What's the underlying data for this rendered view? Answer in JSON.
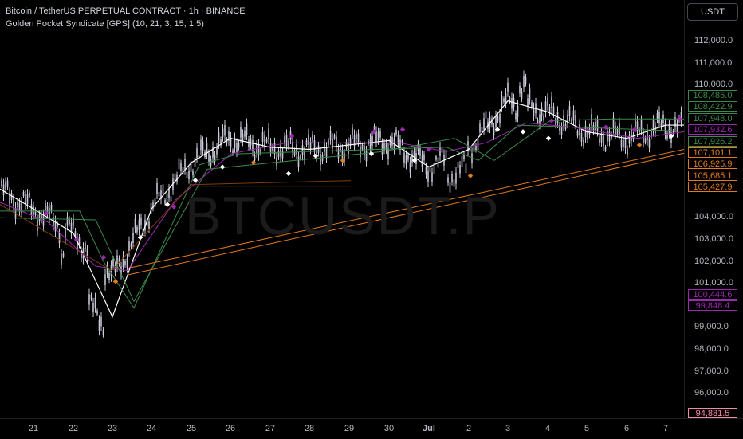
{
  "header": {
    "title": "Bitcoin / TetherUS PERPETUAL CONTRACT · 1h · BINANCE",
    "indicator": "Golden Pocket Syndicate [GPS] (10, 21, 3, 15, 1.5)"
  },
  "watermark": "BTCUSDT.P",
  "currency_button": "USDT",
  "price_axis": {
    "ticks": [
      "112,000.0",
      "111,000.0",
      "110,000.0",
      "104,000.0",
      "103,000.0",
      "102,000.0",
      "101,000.0",
      "99,000.0",
      "98,000.0",
      "97,000.0",
      "96,000.0"
    ],
    "tick_values": [
      112000,
      111000,
      110000,
      104000,
      103000,
      102000,
      101000,
      99000,
      98000,
      97000,
      96000
    ],
    "badges": [
      {
        "text": "108,485.0",
        "value": 108485.0,
        "color": "#3d8a4a"
      },
      {
        "text": "108,422.9",
        "value": 108422.9,
        "color": "#3d8a4a"
      },
      {
        "text": "107,948.0",
        "value": 107948.0,
        "color": "#3d8a4a"
      },
      {
        "text": "107,932.6",
        "value": 107932.6,
        "color": "#9c27b0"
      },
      {
        "text": "107,926.2",
        "value": 107926.2,
        "color": "#3d8a4a"
      },
      {
        "text": "107,101.1",
        "value": 107101.1,
        "color": "#e07b1f"
      },
      {
        "text": "106,925.9",
        "value": 106925.9,
        "color": "#e07b1f"
      },
      {
        "text": "105,685.1",
        "value": 105685.1,
        "color": "#e07b1f"
      },
      {
        "text": "105,427.9",
        "value": 105427.9,
        "color": "#e07b1f"
      },
      {
        "text": "100,444.6",
        "value": 100444.6,
        "color": "#9c27b0"
      },
      {
        "text": "99,848.4",
        "value": 99848.4,
        "color": "#9c27b0"
      },
      {
        "text": "94,881.5",
        "value": 94881.5,
        "color": "#f28ba8"
      }
    ]
  },
  "time_axis": {
    "labels": [
      "21",
      "22",
      "23",
      "24",
      "25",
      "26",
      "27",
      "28",
      "29",
      "30",
      "Jul",
      "2",
      "3",
      "4",
      "5",
      "6",
      "7"
    ]
  },
  "colors": {
    "candle": "#c8c8d8",
    "green": "#3d8a4a",
    "purple": "#9c27b0",
    "orange": "#e07b1f",
    "white": "#ffffff"
  },
  "chart_data": {
    "type": "line",
    "title": "Bitcoin / TetherUS PERPETUAL CONTRACT · 1h · BINANCE",
    "xlabel": "",
    "ylabel": "",
    "x": [
      "21",
      "22",
      "23",
      "24",
      "25",
      "26",
      "27",
      "28",
      "29",
      "30",
      "Jul",
      "2",
      "3",
      "4",
      "5",
      "6",
      "7"
    ],
    "ylim": [
      94881.5,
      112000
    ],
    "series": [
      {
        "values": [
          104400,
          103300,
          101300,
          104400,
          106500,
          107600,
          107200,
          107100,
          107300,
          107500,
          106300,
          107100,
          109300,
          108800,
          107900,
          107600,
          108200
        ]
      }
    ]
  }
}
